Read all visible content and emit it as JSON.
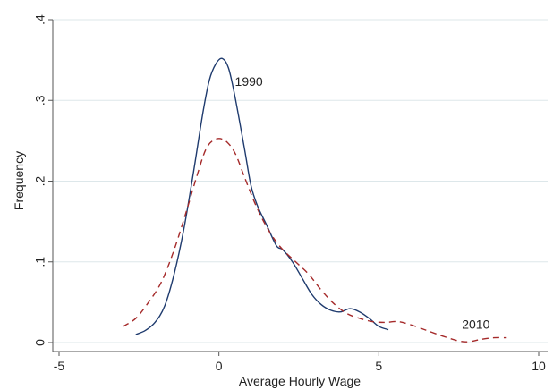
{
  "chart_data": {
    "type": "line",
    "title": "",
    "xlabel": "Average Hourly Wage",
    "ylabel": "Frequency",
    "xlim": [
      -5,
      10
    ],
    "ylim": [
      0,
      0.4
    ],
    "xticks": [
      -5,
      0,
      5,
      10
    ],
    "xtick_labels": [
      "-5",
      "0",
      "5",
      "10"
    ],
    "yticks": [
      0,
      0.1,
      0.2,
      0.3,
      0.4
    ],
    "ytick_labels": [
      "0",
      ".1",
      ".2",
      ".3",
      ".4"
    ],
    "grid": true,
    "legend": "none",
    "colors": {
      "y1990": "#1f3b6e",
      "y2010": "#a52a2a",
      "grid": "#dde7ea"
    },
    "series": [
      {
        "name": "1990",
        "style": "solid",
        "x": [
          -2.6,
          -2.3,
          -2.0,
          -1.7,
          -1.4,
          -1.1,
          -0.8,
          -0.5,
          -0.3,
          -0.1,
          0.1,
          0.3,
          0.5,
          0.8,
          1.0,
          1.2,
          1.5,
          1.8,
          2.0,
          2.3,
          2.6,
          2.9,
          3.2,
          3.5,
          3.8,
          4.1,
          4.4,
          4.7,
          5.0,
          5.3
        ],
        "y": [
          0.01,
          0.015,
          0.025,
          0.045,
          0.085,
          0.14,
          0.21,
          0.285,
          0.325,
          0.345,
          0.352,
          0.34,
          0.305,
          0.24,
          0.195,
          0.17,
          0.145,
          0.12,
          0.115,
          0.1,
          0.08,
          0.06,
          0.047,
          0.04,
          0.038,
          0.042,
          0.038,
          0.03,
          0.02,
          0.016
        ]
      },
      {
        "name": "2010",
        "style": "dashed",
        "x": [
          -3.0,
          -2.6,
          -2.2,
          -1.8,
          -1.4,
          -1.0,
          -0.7,
          -0.4,
          -0.1,
          0.2,
          0.5,
          0.8,
          1.1,
          1.4,
          1.7,
          2.0,
          2.4,
          2.8,
          3.2,
          3.6,
          4.0,
          4.4,
          4.8,
          5.2,
          5.6,
          6.0,
          6.5,
          7.0,
          7.5,
          7.8,
          8.2,
          8.6,
          9.0
        ],
        "y": [
          0.02,
          0.03,
          0.05,
          0.075,
          0.115,
          0.165,
          0.205,
          0.24,
          0.252,
          0.25,
          0.235,
          0.205,
          0.175,
          0.15,
          0.13,
          0.115,
          0.1,
          0.085,
          0.065,
          0.048,
          0.036,
          0.03,
          0.026,
          0.025,
          0.026,
          0.022,
          0.015,
          0.008,
          0.002,
          0.001,
          0.004,
          0.006,
          0.006
        ]
      }
    ],
    "annotations": [
      {
        "text": "1990",
        "x": 0.5,
        "y": 0.318
      },
      {
        "text": "2010",
        "x": 7.6,
        "y": 0.017
      }
    ]
  }
}
